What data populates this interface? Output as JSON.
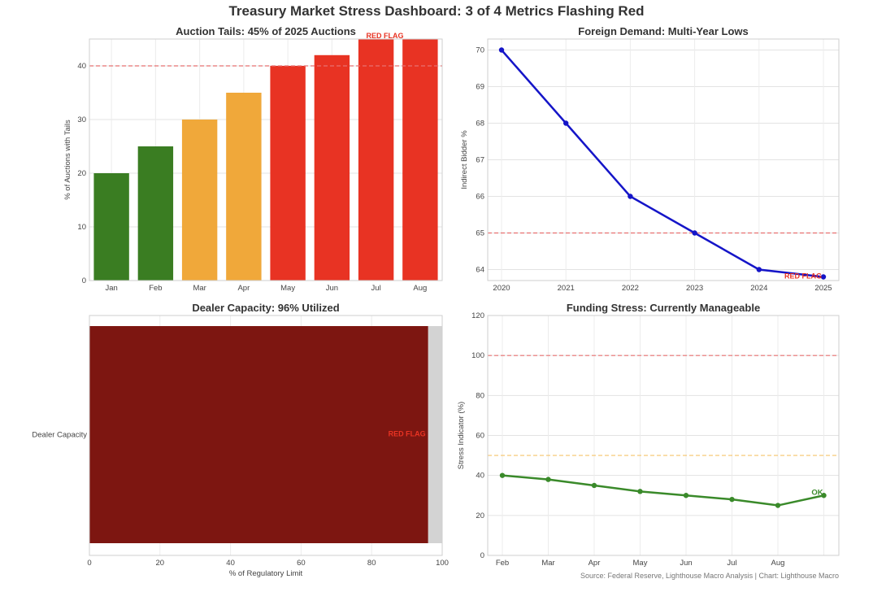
{
  "title": "Treasury Market Stress Dashboard: 3 of 4 Metrics Flashing Red",
  "source": "Source: Federal Reserve, Lighthouse Macro Analysis | Chart: Lighthouse Macro",
  "colors": {
    "green": "#3a7d22",
    "orange": "#f0a83a",
    "red": "#e83323",
    "dark_red": "#7d1611",
    "blue": "#1515c8",
    "line_green": "#3a8a2a",
    "ref_red": "#e87070",
    "ref_orange": "#f5c46a",
    "remaining": "#d3d3d3"
  },
  "chart_data": [
    {
      "type": "bar",
      "title": "Auction Tails: 45% of 2025 Auctions",
      "ylabel": "% of Auctions with Tails",
      "xlabel": "",
      "categories": [
        "Jan",
        "Feb",
        "Mar",
        "Apr",
        "May",
        "Jun",
        "Jul",
        "Aug"
      ],
      "values": [
        20,
        25,
        30,
        35,
        40,
        42,
        45,
        45
      ],
      "bar_colors": [
        "green",
        "green",
        "orange",
        "orange",
        "red",
        "red",
        "red",
        "red"
      ],
      "ylim": [
        0,
        45
      ],
      "yticks": [
        0,
        10,
        20,
        30,
        40
      ],
      "reference_line": 40,
      "annotation": "RED FLAG",
      "grid": true
    },
    {
      "type": "line",
      "title": "Foreign Demand: Multi-Year Lows",
      "ylabel": "Indirect Bidder %",
      "xlabel": "",
      "x": [
        2020,
        2021,
        2022,
        2023,
        2024,
        2025
      ],
      "values": [
        70,
        68,
        66,
        65,
        64,
        63.8
      ],
      "ylim": [
        63.7,
        70.3
      ],
      "yticks": [
        64,
        65,
        66,
        67,
        68,
        69,
        70
      ],
      "reference_line": 65,
      "annotation": "RED FLAG",
      "grid": true
    },
    {
      "type": "bar",
      "orientation": "horizontal",
      "title": "Dealer Capacity: 96% Utilized",
      "xlabel": "% of Regulatory Limit",
      "ylabel": "",
      "categories": [
        "Dealer Capacity"
      ],
      "values": [
        96
      ],
      "xlim": [
        0,
        100
      ],
      "xticks": [
        0,
        20,
        40,
        60,
        80,
        100
      ],
      "annotation": "RED FLAG",
      "grid": true
    },
    {
      "type": "line",
      "title": "Funding Stress: Currently Manageable",
      "ylabel": "Stress Indicator (%)",
      "xlabel": "",
      "categories": [
        "Feb",
        "Mar",
        "Apr",
        "May",
        "Jun",
        "Jul",
        "Aug",
        ""
      ],
      "values": [
        40,
        38,
        35,
        32,
        30,
        28,
        25,
        30
      ],
      "ylim": [
        0,
        120
      ],
      "yticks": [
        0,
        20,
        40,
        60,
        80,
        100,
        120
      ],
      "reference_lines": [
        100,
        50
      ],
      "annotation": "OK",
      "grid": true
    }
  ]
}
